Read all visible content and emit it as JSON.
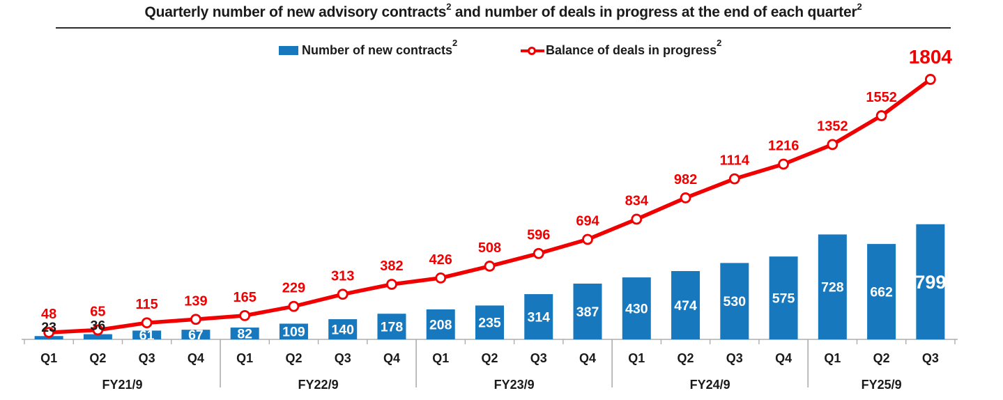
{
  "title": {
    "part1": "Quarterly number of new advisory contracts",
    "sup1": "2",
    "part2": " and number of deals in progress at the end of each quarter",
    "sup2": "2"
  },
  "legend": {
    "items": [
      {
        "label": "Number of new contracts",
        "sup": "2",
        "swatch": "bar"
      },
      {
        "label": "Balance of deals in progress",
        "sup": "2",
        "swatch": "line-marker"
      }
    ]
  },
  "chart_data": {
    "type": "bar+line combo",
    "quarters": [
      "Q1",
      "Q2",
      "Q3",
      "Q4",
      "Q1",
      "Q2",
      "Q3",
      "Q4",
      "Q1",
      "Q2",
      "Q3",
      "Q4",
      "Q1",
      "Q2",
      "Q3",
      "Q4",
      "Q1",
      "Q2",
      "Q3"
    ],
    "fiscal_year_groups": [
      {
        "label": "FY21/9",
        "count": 4
      },
      {
        "label": "FY22/9",
        "count": 4
      },
      {
        "label": "FY23/9",
        "count": 4
      },
      {
        "label": "FY24/9",
        "count": 4
      },
      {
        "label": "FY25/9",
        "count": 3
      }
    ],
    "series": [
      {
        "name": "Number of new contracts",
        "type": "bar",
        "color": "#1878BE",
        "values": [
          23,
          36,
          61,
          67,
          82,
          109,
          140,
          178,
          208,
          235,
          314,
          387,
          430,
          474,
          530,
          575,
          728,
          662,
          799
        ]
      },
      {
        "name": "Balance of deals in progress",
        "type": "line",
        "color": "#F00000",
        "values": [
          48,
          65,
          115,
          139,
          165,
          229,
          313,
          382,
          426,
          508,
          596,
          694,
          834,
          982,
          1114,
          1216,
          1352,
          1552,
          1804
        ]
      }
    ],
    "ylim": [
      0,
      1900
    ],
    "gridlines": false,
    "y_axis_shown": false,
    "value_labels": "every bar and every line point is labeled; last value of each series emphasized in larger font",
    "legend_position": "top-center"
  },
  "colors": {
    "bar": "#1878BE",
    "line": "#F00000",
    "bar_label_inside": "#FFFFFF",
    "bar_label_outside": "#1a1a1a",
    "line_label": "#F00000",
    "axis": "#ADADAD",
    "text": "#1a1a1a",
    "background": "#FFFFFF"
  }
}
